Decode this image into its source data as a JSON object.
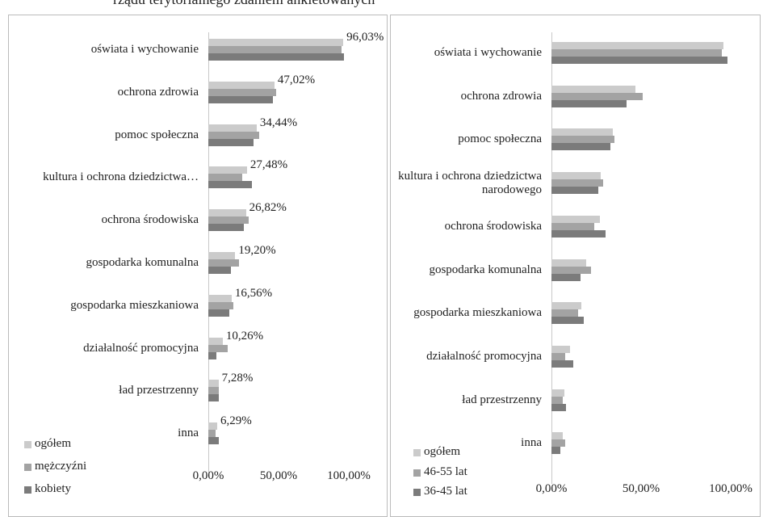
{
  "caption": "rządu terytorialnego zdaniem ankietowanych",
  "chart_data": [
    {
      "type": "barh",
      "categories": [
        "oświata i wychowanie",
        "ochrona zdrowia",
        "pomoc społeczna",
        "kultura i ochrona dziedzictwa…",
        "ochrona środowiska",
        "gospodarka komunalna",
        "gospodarka mieszkaniowa",
        "działalność promocyjna",
        "ład przestrzenny",
        "inna"
      ],
      "series": [
        {
          "name": "ogółem",
          "color": "#cbcbcb",
          "values": [
            96.03,
            47.02,
            34.44,
            27.48,
            26.82,
            19.2,
            16.56,
            10.26,
            7.28,
            6.29
          ],
          "value_labels": [
            "96,03%",
            "47,02%",
            "34,44%",
            "27,48%",
            "26,82%",
            "19,20%",
            "16,56%",
            "10,26%",
            "7,28%",
            "6,29%"
          ]
        },
        {
          "name": "mężczyźni",
          "color": "#a3a3a3",
          "values": [
            95,
            48.5,
            36,
            24,
            29,
            22,
            18,
            14,
            7.3,
            5
          ]
        },
        {
          "name": "kobiety",
          "color": "#7b7b7b",
          "values": [
            96.5,
            46,
            32,
            31,
            25,
            16,
            15,
            6,
            7.3,
            7.5
          ]
        }
      ],
      "xlim": [
        0,
        100
      ],
      "xticks": [
        {
          "value": 0,
          "label": "0,00%"
        },
        {
          "value": 50,
          "label": "50,00%"
        },
        {
          "value": 100,
          "label": "100,00%"
        }
      ],
      "legend": "lower left"
    },
    {
      "type": "barh",
      "categories": [
        "oświata i wychowanie",
        "ochrona zdrowia",
        "pomoc społeczna",
        "kultura i ochrona dziedzictwa narodowego",
        "ochrona środowiska",
        "gospodarka komunalna",
        "gospodarka mieszkaniowa",
        "działalność promocyjna",
        "ład przestrzenny",
        "inna"
      ],
      "series": [
        {
          "name": "ogółem",
          "color": "#cbcbcb",
          "values": [
            96.03,
            47.02,
            34.44,
            27.48,
            26.82,
            19.2,
            16.56,
            10.26,
            7.28,
            6.29
          ]
        },
        {
          "name": "46-55 lat",
          "color": "#a3a3a3",
          "values": [
            95,
            51,
            35,
            29,
            24,
            22,
            15,
            7.5,
            6.5,
            7.5
          ]
        },
        {
          "name": "36-45 lat",
          "color": "#7b7b7b",
          "values": [
            98,
            42,
            33,
            26,
            30,
            16,
            18,
            12,
            8,
            5
          ]
        }
      ],
      "xlim": [
        0,
        100
      ],
      "xticks": [
        {
          "value": 0,
          "label": "0,00%"
        },
        {
          "value": 50,
          "label": "50,00%"
        },
        {
          "value": 100,
          "label": "100,00%"
        }
      ],
      "legend": "lower left"
    }
  ]
}
